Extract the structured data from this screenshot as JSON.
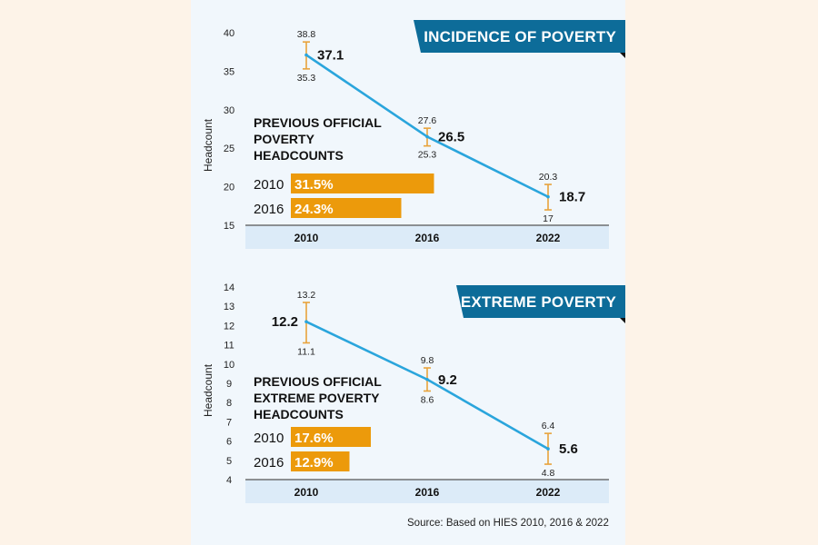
{
  "colors": {
    "page_bg": "#fdf3e8",
    "panel_bg": "#f1f7fc",
    "banner": "#0d6c99",
    "line": "#2aa5dc",
    "error_bar": "#e8a33c",
    "bar": "#ec9a0b",
    "axis_band": "#dcebf8"
  },
  "source": "Source: Based on HIES 2010, 2016 & 2022",
  "chart_data": [
    {
      "type": "line",
      "title": "INCIDENCE OF POVERTY",
      "ylabel": "Headcount",
      "xlabel": "",
      "ylim": [
        15,
        40
      ],
      "yticks": [
        15,
        20,
        25,
        30,
        35,
        40
      ],
      "categories": [
        "2010",
        "2016",
        "2022"
      ],
      "series": [
        {
          "name": "Incidence of poverty",
          "values": [
            37.1,
            26.5,
            18.7
          ],
          "value_labels": [
            "37.1",
            "26.5",
            "18.7"
          ],
          "upper": [
            38.8,
            27.6,
            20.3
          ],
          "upper_labels": [
            "38.8",
            "27.6",
            "20.3"
          ],
          "lower": [
            35.3,
            25.3,
            17
          ],
          "lower_labels": [
            "35.3",
            "25.3",
            "17"
          ]
        }
      ],
      "inset": {
        "title_lines": [
          "PREVIOUS OFFICIAL",
          "POVERTY",
          "HEADCOUNTS"
        ],
        "type": "bar",
        "categories": [
          "2010",
          "2016"
        ],
        "values": [
          31.5,
          24.3
        ],
        "value_labels": [
          "31.5%",
          "24.3%"
        ]
      },
      "grid": false
    },
    {
      "type": "line",
      "title": "EXTREME POVERTY",
      "ylabel": "Headcount",
      "xlabel": "",
      "ylim": [
        4,
        14
      ],
      "yticks": [
        4,
        5,
        6,
        7,
        8,
        9,
        10,
        11,
        12,
        13,
        14
      ],
      "categories": [
        "2010",
        "2016",
        "2022"
      ],
      "series": [
        {
          "name": "Extreme poverty",
          "values": [
            12.2,
            9.2,
            5.6
          ],
          "value_labels": [
            "12.2",
            "9.2",
            "5.6"
          ],
          "upper": [
            13.2,
            9.8,
            6.4
          ],
          "upper_labels": [
            "13.2",
            "9.8",
            "6.4"
          ],
          "lower": [
            11.1,
            8.6,
            4.8
          ],
          "lower_labels": [
            "11.1",
            "8.6",
            "4.8"
          ]
        }
      ],
      "inset": {
        "title_lines": [
          "PREVIOUS OFFICIAL",
          "EXTREME POVERTY",
          "HEADCOUNTS"
        ],
        "type": "bar",
        "categories": [
          "2010",
          "2016"
        ],
        "values": [
          17.6,
          12.9
        ],
        "value_labels": [
          "17.6%",
          "12.9%"
        ]
      },
      "grid": false
    }
  ]
}
